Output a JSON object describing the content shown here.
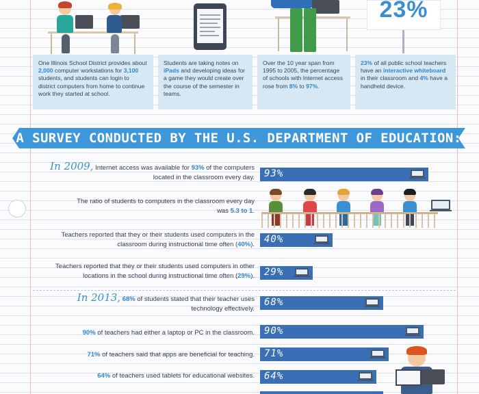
{
  "top_stat": {
    "value": "23%"
  },
  "cards": [
    {
      "parts": [
        "One Illinois School District provides about ",
        "2,000",
        " computer workstations for ",
        "3,100",
        " students, and students can login to district computers from home to continue work they started at school."
      ]
    },
    {
      "parts": [
        "Students are taking notes on ",
        "iPads",
        " and developing ideas for a game they would create over the course of the semester in teams."
      ]
    },
    {
      "parts": [
        "Over the 10 year span from 1995 to 2005, the percentage of schools with Internet access rose from ",
        "8%",
        " to ",
        "97%",
        "."
      ]
    },
    {
      "parts": [
        "23%",
        " of all public school teachers have an ",
        "interactive whiteboard",
        " in their classroom and ",
        "4%",
        " have a handheld device."
      ]
    }
  ],
  "banner": {
    "title": "A SURVEY CONDUCTED BY THE U.S. DEPARTMENT OF EDUCATION:"
  },
  "rows": {
    "r2009": {
      "script": "In 2009,",
      "t1": " Internet access was available for ",
      "pct": "93%",
      "t2": " of the computers located in the classroom every day.",
      "bar": "93%",
      "value": 93
    },
    "ratio": {
      "t1": "The ratio of students to computers in the classroom every day was ",
      "ratio": "5.3 to 1",
      "t2": "."
    },
    "often": {
      "t1": "Teachers reported that they or their students used computers in the classroom during instructional time often (",
      "pct": "40%",
      "t2": ").",
      "bar": "40%",
      "value": 40
    },
    "other": {
      "t1": "Teachers reported that they or their students used computers in other locations in the school during instructional time often (",
      "pct": "29%",
      "t2": ").",
      "bar": "29%",
      "value": 29
    },
    "r2013": {
      "script": "In 2013,",
      "pct": "68%",
      "t1": " of students stated that their teacher uses technology effectively.",
      "bar": "68%",
      "value": 68
    },
    "laptop": {
      "pct": "90%",
      "t1": " of teachers had either a laptop or PC in the classroom.",
      "bar": "90%",
      "value": 90
    },
    "apps": {
      "pct": "71%",
      "t1": " of teachers said that apps are beneficial for teaching.",
      "bar": "71%",
      "value": 71
    },
    "tablets": {
      "pct": "64%",
      "t1": " of teachers used tablets for educational websites.",
      "bar": "64%",
      "value": 64
    }
  },
  "colors": {
    "accent": "#3a8fd0",
    "bar": "#3a6fb6",
    "banner": "#3d97d8",
    "card": "#d7e8f5"
  }
}
